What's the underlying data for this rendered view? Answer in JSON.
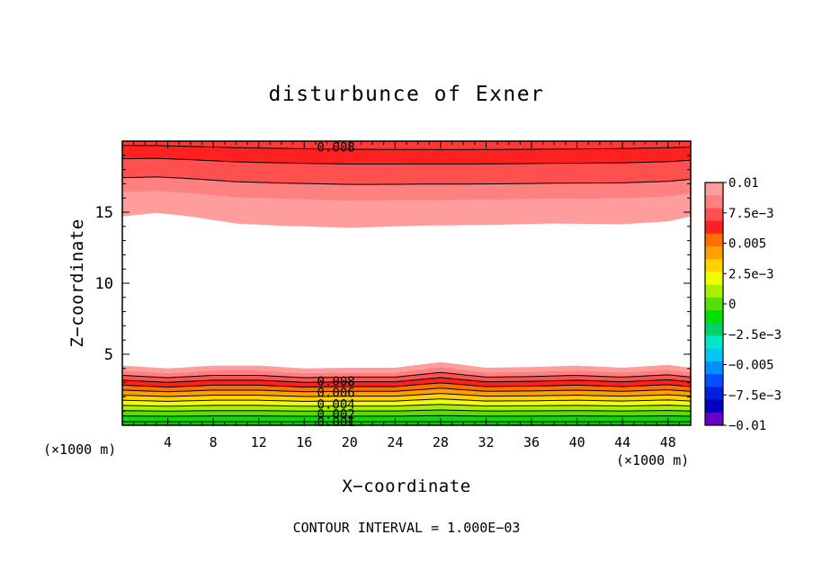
{
  "chart_data": {
    "type": "contour",
    "title": "disturbunce of Exner",
    "xlabel": "X−coordinate",
    "ylabel": "Z−coordinate",
    "x_units_left": "(×1000 m)",
    "x_units_right": "(×1000 m)",
    "xlim": [
      0,
      50
    ],
    "ylim": [
      0,
      20
    ],
    "x_ticks": [
      4,
      8,
      12,
      16,
      20,
      24,
      28,
      32,
      36,
      40,
      44,
      48
    ],
    "y_ticks": [
      5,
      10,
      15
    ],
    "footer": "CONTOUR INTERVAL = 1.000E−03",
    "colorbar": {
      "labels": [
        "0.01",
        "7.5e−3",
        "0.005",
        "2.5e−3",
        "0",
        "−2.5e−3",
        "−0.005",
        "−7.5e−3",
        "−0.01"
      ],
      "label_values": [
        0.01,
        0.0075,
        0.005,
        0.0025,
        0,
        -0.0025,
        -0.005,
        -0.0075,
        -0.01
      ],
      "colors_top_to_bottom": [
        "#ff9d9d",
        "#ff8080",
        "#ff5050",
        "#ff2020",
        "#ff6e00",
        "#ffa000",
        "#ffd200",
        "#f0ff00",
        "#a8f000",
        "#55e000",
        "#00e000",
        "#00d26a",
        "#00e8c8",
        "#00c8f0",
        "#0090ff",
        "#0050ff",
        "#0020e0",
        "#0000c0",
        "#6a00c8"
      ]
    },
    "contour_labels": [
      {
        "text": "0.008",
        "x": 18.8,
        "y": 19.6
      },
      {
        "text": "0.008",
        "x": 18.8,
        "y": 3.1
      },
      {
        "text": "0.006",
        "x": 18.8,
        "y": 2.3
      },
      {
        "text": "0.004",
        "x": 18.8,
        "y": 1.5
      },
      {
        "text": "0.002",
        "x": 18.8,
        "y": 0.8
      },
      {
        "text": "0.001",
        "x": 18.8,
        "y": 0.25
      }
    ],
    "lower_layer": {
      "white_boundary": [
        [
          0,
          4.2
        ],
        [
          4,
          4.0
        ],
        [
          8,
          4.2
        ],
        [
          12,
          4.2
        ],
        [
          16,
          4.0
        ],
        [
          20,
          4.05
        ],
        [
          24,
          4.05
        ],
        [
          28,
          4.45
        ],
        [
          32,
          4.05
        ],
        [
          36,
          4.1
        ],
        [
          40,
          4.2
        ],
        [
          44,
          4.05
        ],
        [
          48,
          4.25
        ],
        [
          50,
          4.05
        ]
      ],
      "colors_top_to_bottom": [
        "#ff9d9d",
        "#ff8080",
        "#ff5050",
        "#ff2020",
        "#ff6e00",
        "#ffa000",
        "#ffd200",
        "#f0ff00",
        "#a8f000",
        "#55e000",
        "#00e000"
      ],
      "bottom_level": 0.25
    },
    "upper_layer": {
      "white_boundary": [
        [
          0,
          14.7
        ],
        [
          3,
          14.95
        ],
        [
          6,
          14.7
        ],
        [
          10,
          14.2
        ],
        [
          14,
          14.05
        ],
        [
          20,
          13.9
        ],
        [
          26,
          14.05
        ],
        [
          32,
          14.1
        ],
        [
          38,
          14.2
        ],
        [
          44,
          14.15
        ],
        [
          48,
          14.35
        ],
        [
          50,
          14.7
        ]
      ],
      "band_tops": [
        16.1,
        17.2,
        18.6,
        19.6,
        20.0
      ],
      "colors_bottom_to_top": [
        "#ff9d9d",
        "#ff8080",
        "#ff5050",
        "#ff2020",
        "#ff3838"
      ]
    }
  }
}
